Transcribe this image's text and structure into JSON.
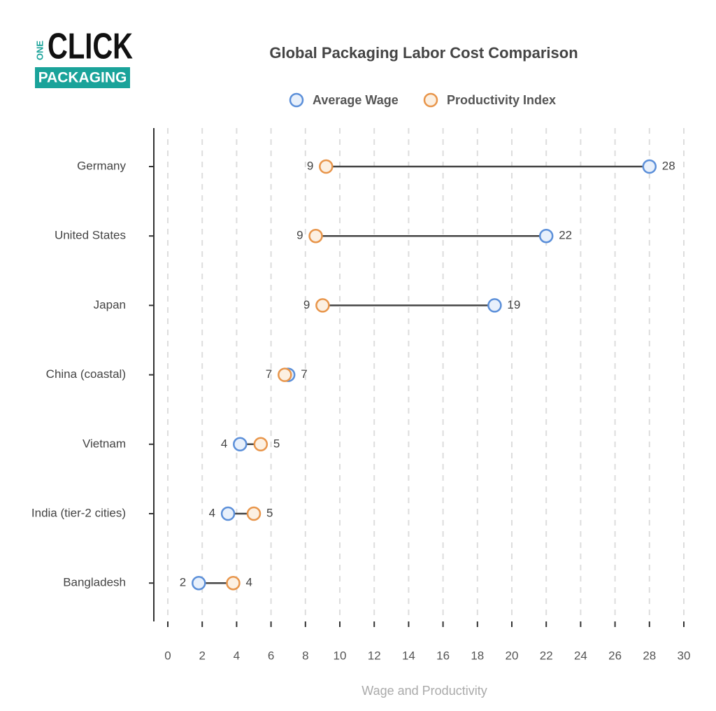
{
  "logo": {
    "one": "ONE",
    "click": "CLICK",
    "packaging": "PACKAGING"
  },
  "chart_data": {
    "type": "dumbbell",
    "title": "Global Packaging Labor Cost Comparison",
    "xlabel": "Wage and Productivity",
    "categories": [
      "Germany",
      "United States",
      "Japan",
      "China (coastal)",
      "Vietnam",
      "India (tier-2 cities)",
      "Bangladesh"
    ],
    "series": [
      {
        "name": "Average Wage",
        "color": "#5b8fd9",
        "fill": "#e8f0fb",
        "values": [
          28,
          22,
          19,
          7.0,
          4.2,
          3.5,
          1.8
        ],
        "value_labels": [
          "28",
          "22",
          "19",
          "7",
          "4",
          "4",
          "2"
        ]
      },
      {
        "name": "Productivity Index",
        "color": "#e8954a",
        "fill": "#fcf0e2",
        "values": [
          9.2,
          8.6,
          9.0,
          6.8,
          5.4,
          5.0,
          3.8
        ],
        "value_labels": [
          "9",
          "9",
          "9",
          "7",
          "5",
          "5",
          "4"
        ]
      }
    ],
    "xlim": [
      0,
      30
    ],
    "xticks": [
      0,
      2,
      4,
      6,
      8,
      10,
      12,
      14,
      16,
      18,
      20,
      22,
      24,
      26,
      28,
      30
    ],
    "grid": true
  }
}
